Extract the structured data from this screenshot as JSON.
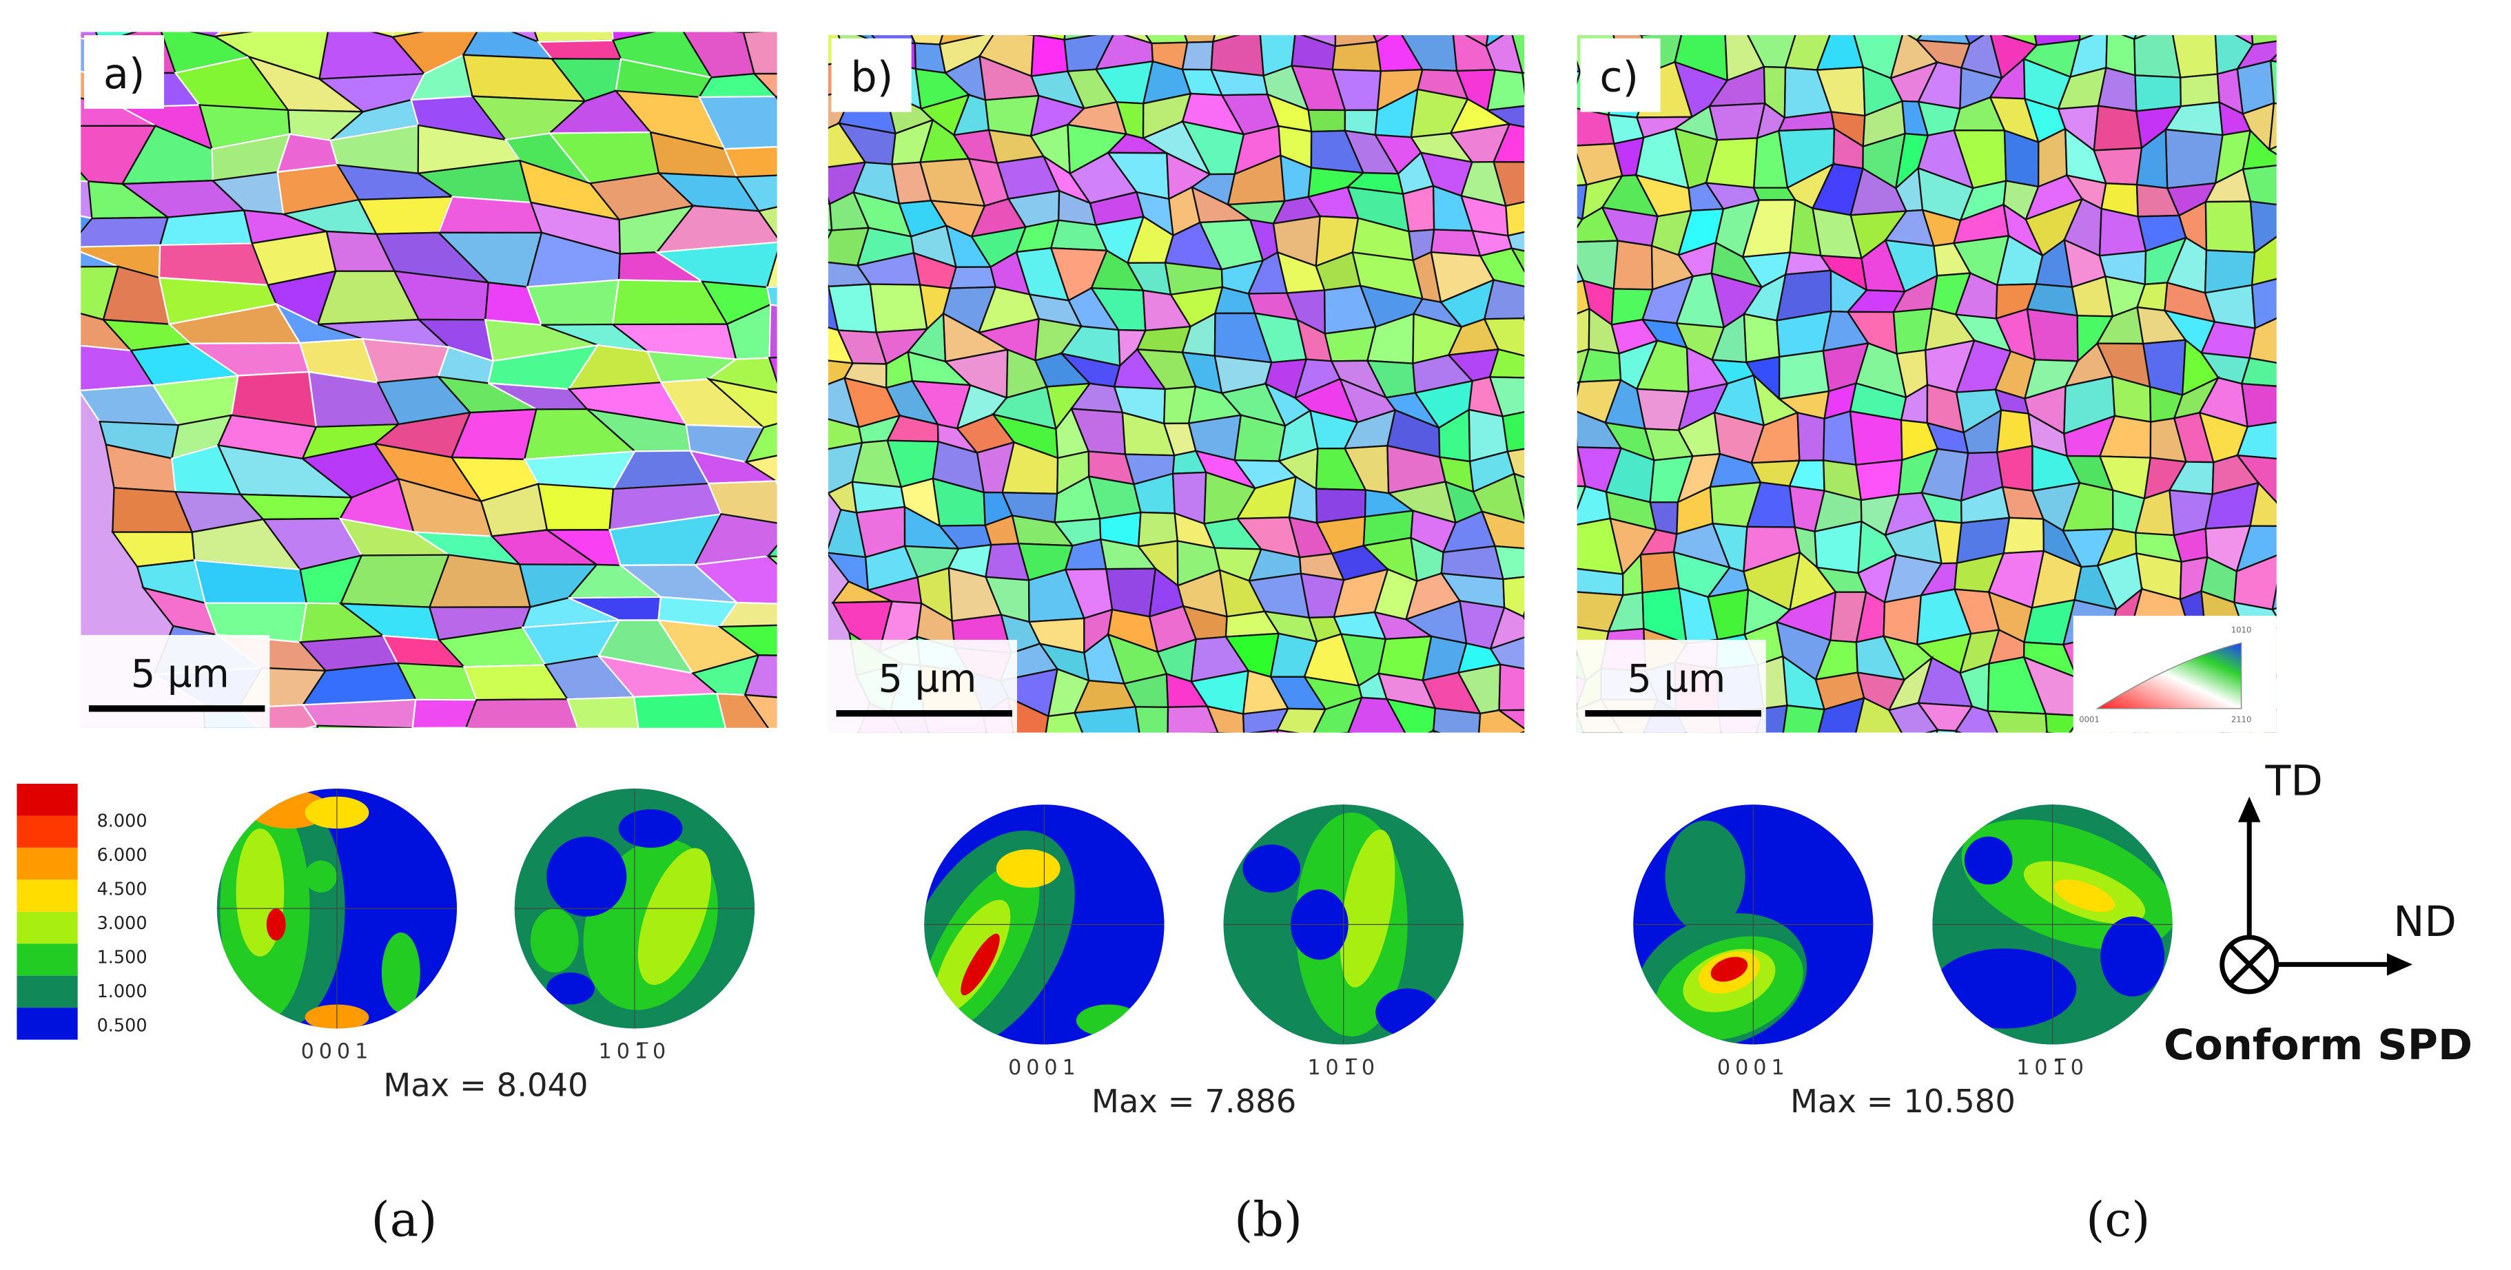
{
  "panels": [
    {
      "label": "a)",
      "scale_bar": "5 µm",
      "pole_figures": [
        "0001",
        "101̅0"
      ],
      "max": "Max = 8.040",
      "caption": "(a)"
    },
    {
      "label": "b)",
      "scale_bar": "5 µm",
      "pole_figures": [
        "0001",
        "101̅0"
      ],
      "max": "Max = 7.886",
      "caption": "(b)"
    },
    {
      "label": "c)",
      "scale_bar": "5 µm",
      "pole_figures": [
        "0001",
        "101̅0"
      ],
      "max": "Max = 10.580",
      "caption": "(c)"
    }
  ],
  "legend": {
    "levels": [
      "8.000",
      "6.000",
      "4.500",
      "3.000",
      "1.500",
      "1.000",
      "0.500"
    ]
  },
  "ipf_key": {
    "labels": [
      "0001",
      "2110",
      "1010"
    ]
  },
  "axes": {
    "td": "TD",
    "nd": "ND",
    "process": "Conform SPD"
  }
}
